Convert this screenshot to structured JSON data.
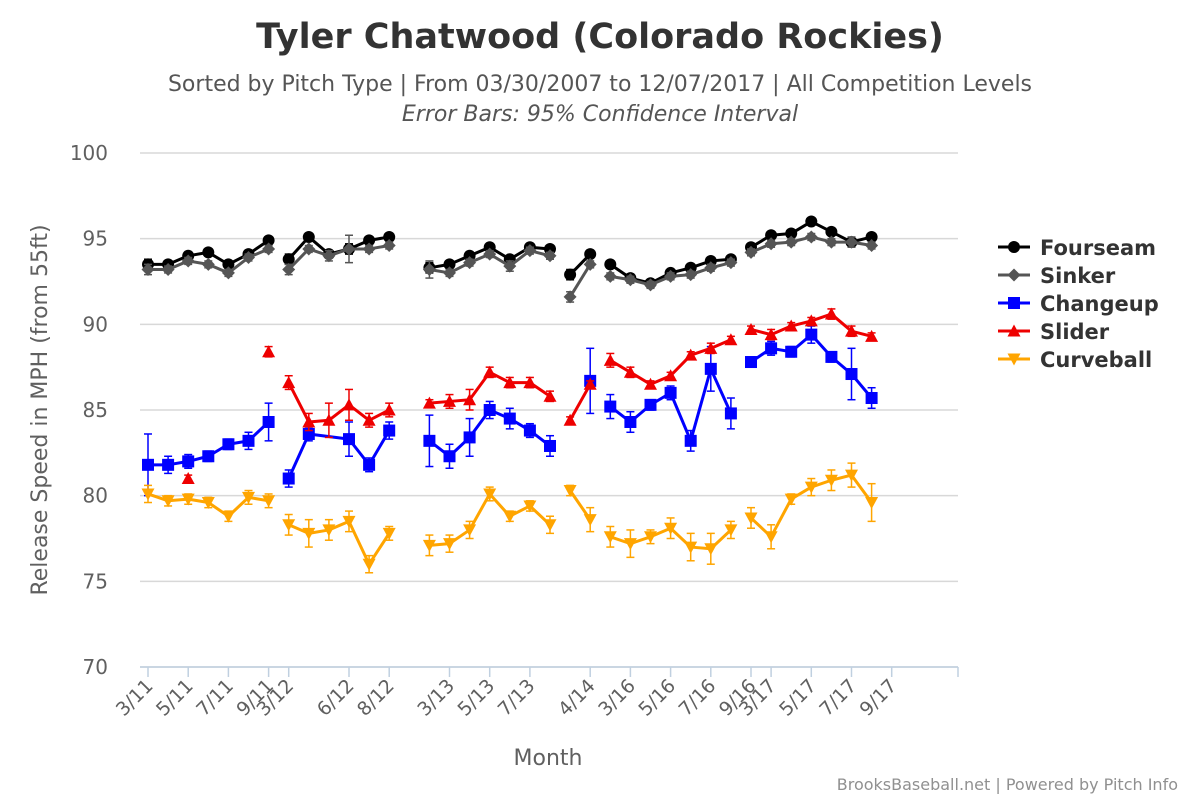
{
  "chart_data": {
    "type": "line",
    "title": "Tyler Chatwood (Colorado Rockies)",
    "subtitle": "Sorted by Pitch Type | From 03/30/2007 to 12/07/2017 | All Competition Levels",
    "subtitle2": "Error Bars: 95% Confidence Interval",
    "xlabel": "Month",
    "ylabel": "Release Speed in MPH (from 55ft)",
    "ylim": [
      70,
      100
    ],
    "yticks": [
      70,
      75,
      80,
      85,
      90,
      95,
      100
    ],
    "grid": true,
    "legend_position": "right",
    "credits": "BrooksBaseball.net | Powered by Pitch Info",
    "x_tick_labels": [
      {
        "label": "3/11",
        "x": 0
      },
      {
        "label": "5/11",
        "x": 2
      },
      {
        "label": "7/11",
        "x": 4
      },
      {
        "label": "9/11",
        "x": 6
      },
      {
        "label": "3/12",
        "x": 7
      },
      {
        "label": "6/12",
        "x": 10
      },
      {
        "label": "8/12",
        "x": 12
      },
      {
        "label": "3/13",
        "x": 15
      },
      {
        "label": "5/13",
        "x": 17
      },
      {
        "label": "7/13",
        "x": 19
      },
      {
        "label": "4/14",
        "x": 22
      },
      {
        "label": "3/16",
        "x": 24
      },
      {
        "label": "5/16",
        "x": 26
      },
      {
        "label": "7/16",
        "x": 28
      },
      {
        "label": "9/16",
        "x": 30
      },
      {
        "label": "3/17",
        "x": 31
      },
      {
        "label": "5/17",
        "x": 33
      },
      {
        "label": "7/17",
        "x": 35
      },
      {
        "label": "9/17",
        "x": 37
      }
    ],
    "x_max": 37.8,
    "series": [
      {
        "name": "Fourseam",
        "color": "#000000",
        "marker": "circle",
        "segments": [
          [
            [
              0,
              93.5,
              0.3
            ],
            [
              1,
              93.5,
              0.2
            ],
            [
              2,
              94.0,
              0.2
            ],
            [
              3,
              94.2,
              0.2
            ],
            [
              4,
              93.5,
              0.2
            ],
            [
              5,
              94.1,
              0.2
            ],
            [
              6,
              94.9,
              0.2
            ]
          ],
          [
            [
              7,
              93.8,
              0.3
            ],
            [
              8,
              95.1,
              0.2
            ],
            [
              9,
              94.1,
              0.2
            ],
            [
              10,
              94.4,
              0.3
            ],
            [
              11,
              94.9,
              0.2
            ],
            [
              12,
              95.1,
              0.2
            ]
          ],
          [
            [
              14,
              93.3,
              0.3
            ],
            [
              15,
              93.5,
              0.2
            ],
            [
              16,
              94.0,
              0.2
            ],
            [
              17,
              94.5,
              0.2
            ],
            [
              18,
              93.8,
              0.2
            ],
            [
              19,
              94.5,
              0.2
            ],
            [
              20,
              94.4,
              0.2
            ]
          ],
          [
            [
              21,
              92.9,
              0.3
            ],
            [
              22,
              94.1,
              0.2
            ]
          ],
          [
            [
              23,
              93.5,
              0.2
            ],
            [
              24,
              92.7,
              0.2
            ],
            [
              25,
              92.4,
              0.2
            ],
            [
              26,
              93.0,
              0.2
            ],
            [
              27,
              93.3,
              0.2
            ],
            [
              28,
              93.7,
              0.2
            ],
            [
              29,
              93.8,
              0.2
            ]
          ],
          [
            [
              30,
              94.5,
              0.2
            ],
            [
              31,
              95.2,
              0.2
            ],
            [
              32,
              95.3,
              0.2
            ],
            [
              33,
              96.0,
              0.2
            ],
            [
              34,
              95.4,
              0.2
            ],
            [
              35,
              94.8,
              0.2
            ],
            [
              36,
              95.1,
              0.2
            ]
          ]
        ]
      },
      {
        "name": "Sinker",
        "color": "#555555",
        "marker": "diamond",
        "segments": [
          [
            [
              0,
              93.2,
              0.3
            ],
            [
              1,
              93.2,
              0.2
            ],
            [
              2,
              93.7,
              0.2
            ],
            [
              3,
              93.5,
              0.2
            ],
            [
              4,
              93.0,
              0.2
            ],
            [
              5,
              93.9,
              0.2
            ],
            [
              6,
              94.4,
              0.2
            ]
          ],
          [
            [
              7,
              93.2,
              0.3
            ],
            [
              8,
              94.4,
              0.2
            ],
            [
              9,
              94.0,
              0.3
            ],
            [
              10,
              94.4,
              0.8
            ],
            [
              11,
              94.4,
              0.2
            ],
            [
              12,
              94.6,
              0.2
            ]
          ],
          [
            [
              14,
              93.2,
              0.5
            ],
            [
              15,
              93.0,
              0.2
            ],
            [
              16,
              93.6,
              0.2
            ],
            [
              17,
              94.1,
              0.2
            ],
            [
              18,
              93.4,
              0.3
            ],
            [
              19,
              94.3,
              0.2
            ],
            [
              20,
              94.0,
              0.2
            ]
          ],
          [
            [
              21,
              91.6,
              0.3
            ],
            [
              22,
              93.5,
              0.2
            ]
          ],
          [
            [
              23,
              92.8,
              0.2
            ],
            [
              24,
              92.6,
              0.2
            ],
            [
              25,
              92.3,
              0.2
            ],
            [
              26,
              92.8,
              0.2
            ],
            [
              27,
              92.9,
              0.2
            ],
            [
              28,
              93.3,
              0.2
            ],
            [
              29,
              93.6,
              0.2
            ]
          ],
          [
            [
              30,
              94.2,
              0.2
            ],
            [
              31,
              94.7,
              0.2
            ],
            [
              32,
              94.8,
              0.2
            ],
            [
              33,
              95.1,
              0.2
            ],
            [
              34,
              94.8,
              0.2
            ],
            [
              35,
              94.8,
              0.3
            ],
            [
              36,
              94.6,
              0.2
            ]
          ]
        ]
      },
      {
        "name": "Changeup",
        "color": "#0000FF",
        "marker": "square",
        "segments": [
          [
            [
              0,
              81.8,
              1.8
            ],
            [
              1,
              81.8,
              0.5
            ],
            [
              2,
              82.0,
              0.4
            ],
            [
              3,
              82.3,
              0.3
            ],
            [
              4,
              83.0,
              0.3
            ],
            [
              5,
              83.2,
              0.5
            ],
            [
              6,
              84.3,
              1.1
            ]
          ],
          [
            [
              7,
              81.0,
              0.5
            ],
            [
              8,
              83.6,
              0.4
            ],
            [
              10,
              83.3,
              1.0
            ],
            [
              11,
              81.8,
              0.4
            ],
            [
              12,
              83.8,
              0.5
            ]
          ],
          [
            [
              14,
              83.2,
              1.5
            ],
            [
              15,
              82.3,
              0.7
            ],
            [
              16,
              83.4,
              1.1
            ],
            [
              17,
              85.0,
              0.5
            ],
            [
              18,
              84.5,
              0.6
            ],
            [
              19,
              83.8,
              0.4
            ],
            [
              20,
              82.9,
              0.6
            ]
          ],
          [
            [
              22,
              86.7,
              1.9
            ]
          ],
          [
            [
              23,
              85.2,
              0.7
            ],
            [
              24,
              84.3,
              0.6
            ],
            [
              25,
              85.3,
              0.3
            ],
            [
              26,
              86.0,
              0.4
            ],
            [
              27,
              83.2,
              0.6
            ],
            [
              28,
              87.4,
              1.3
            ],
            [
              29,
              84.8,
              0.9
            ]
          ],
          [
            [
              30,
              87.8,
              0.3
            ],
            [
              31,
              88.6,
              0.4
            ],
            [
              32,
              88.4,
              0.3
            ],
            [
              33,
              89.4,
              0.5
            ],
            [
              34,
              88.1,
              0.3
            ],
            [
              35,
              87.1,
              1.5
            ],
            [
              36,
              85.7,
              0.6
            ]
          ]
        ]
      },
      {
        "name": "Slider",
        "color": "#EE0000",
        "marker": "triangle",
        "segments": [
          [
            [
              2,
              81.0,
              0.2
            ]
          ],
          [
            [
              6,
              88.4,
              0.3
            ]
          ],
          [
            [
              7,
              86.6,
              0.4
            ],
            [
              8,
              84.3,
              0.5
            ],
            [
              9,
              84.4,
              1.0
            ],
            [
              10,
              85.3,
              0.9
            ],
            [
              11,
              84.4,
              0.4
            ],
            [
              12,
              85.0,
              0.4
            ]
          ],
          [
            [
              14,
              85.4,
              0.2
            ],
            [
              15,
              85.5,
              0.4
            ],
            [
              16,
              85.6,
              0.6
            ],
            [
              17,
              87.2,
              0.3
            ],
            [
              18,
              86.6,
              0.3
            ],
            [
              19,
              86.6,
              0.3
            ],
            [
              20,
              85.8,
              0.3
            ]
          ],
          [
            [
              21,
              84.4,
              0.2
            ],
            [
              22,
              86.5,
              0.2
            ]
          ],
          [
            [
              23,
              87.9,
              0.4
            ],
            [
              24,
              87.2,
              0.3
            ],
            [
              25,
              86.5,
              0.2
            ],
            [
              26,
              87.0,
              0.2
            ],
            [
              27,
              88.2,
              0.2
            ],
            [
              28,
              88.6,
              0.3
            ],
            [
              29,
              89.1,
              0.2
            ]
          ],
          [
            [
              30,
              89.7,
              0.2
            ],
            [
              31,
              89.4,
              0.3
            ],
            [
              32,
              89.9,
              0.2
            ],
            [
              33,
              90.2,
              0.2
            ],
            [
              34,
              90.6,
              0.3
            ],
            [
              35,
              89.6,
              0.3
            ],
            [
              36,
              89.3,
              0.2
            ]
          ]
        ]
      },
      {
        "name": "Curveball",
        "color": "#FFA500",
        "marker": "triangle-down",
        "segments": [
          [
            [
              0,
              80.1,
              0.5
            ],
            [
              1,
              79.7,
              0.3
            ],
            [
              2,
              79.8,
              0.3
            ],
            [
              3,
              79.6,
              0.3
            ],
            [
              4,
              78.8,
              0.3
            ],
            [
              5,
              79.9,
              0.4
            ],
            [
              6,
              79.7,
              0.4
            ]
          ],
          [
            [
              7,
              78.3,
              0.6
            ],
            [
              8,
              77.8,
              0.8
            ],
            [
              9,
              78.0,
              0.6
            ],
            [
              10,
              78.5,
              0.6
            ],
            [
              11,
              76.0,
              0.5
            ],
            [
              12,
              77.8,
              0.4
            ]
          ],
          [
            [
              14,
              77.1,
              0.6
            ],
            [
              15,
              77.2,
              0.5
            ],
            [
              16,
              78.0,
              0.5
            ],
            [
              17,
              80.1,
              0.4
            ],
            [
              18,
              78.8,
              0.3
            ],
            [
              19,
              79.4,
              0.3
            ],
            [
              20,
              78.3,
              0.5
            ]
          ],
          [
            [
              21,
              80.3,
              0.3
            ],
            [
              22,
              78.6,
              0.7
            ]
          ],
          [
            [
              23,
              77.6,
              0.6
            ],
            [
              24,
              77.2,
              0.8
            ],
            [
              25,
              77.6,
              0.4
            ],
            [
              26,
              78.1,
              0.6
            ],
            [
              27,
              77.0,
              0.8
            ],
            [
              28,
              76.9,
              0.9
            ],
            [
              29,
              78.0,
              0.5
            ]
          ],
          [
            [
              30,
              78.7,
              0.6
            ],
            [
              31,
              77.6,
              0.7
            ],
            [
              32,
              79.8,
              0.3
            ],
            [
              33,
              80.5,
              0.5
            ],
            [
              34,
              80.9,
              0.6
            ],
            [
              35,
              81.2,
              0.7
            ],
            [
              36,
              79.6,
              1.1
            ]
          ]
        ]
      }
    ]
  }
}
